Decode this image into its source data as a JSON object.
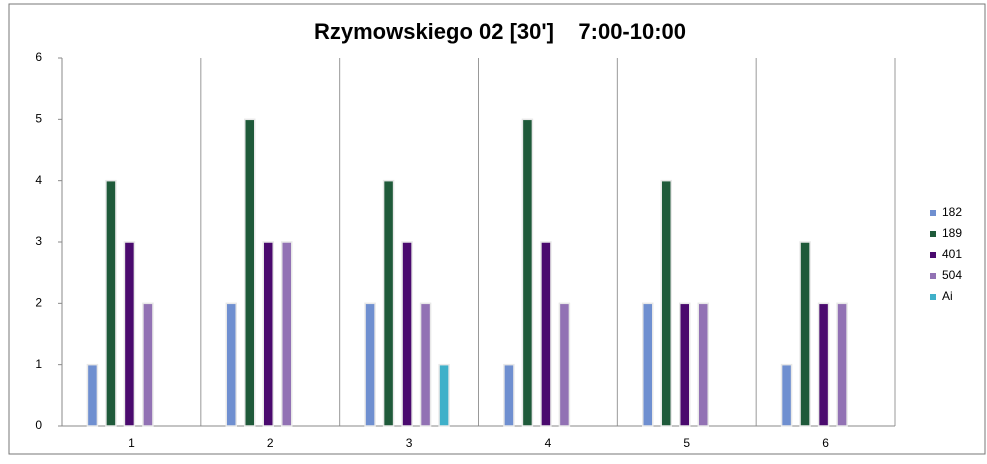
{
  "chart_data": {
    "type": "bar",
    "title": "Rzymowskiego 02 [30']    7:00-10:00",
    "categories": [
      "1",
      "2",
      "3",
      "4",
      "5",
      "6"
    ],
    "series": [
      {
        "name": "182",
        "color": "#6f8fd0",
        "values": [
          1,
          2,
          2,
          1,
          2,
          1
        ]
      },
      {
        "name": "189",
        "color": "#1f5a3a",
        "values": [
          4,
          5,
          4,
          5,
          4,
          3
        ]
      },
      {
        "name": "401",
        "color": "#4a0a6e",
        "values": [
          3,
          3,
          3,
          3,
          2,
          2
        ]
      },
      {
        "name": "504",
        "color": "#9272b4",
        "values": [
          2,
          3,
          2,
          2,
          2,
          2
        ]
      },
      {
        "name": "Ai",
        "color": "#3fb0c9",
        "values": [
          0,
          0,
          1,
          0,
          0,
          0
        ]
      }
    ],
    "ylim": [
      0,
      6
    ],
    "yticks": [
      0,
      1,
      2,
      3,
      4,
      5,
      6
    ],
    "grid": true,
    "legend": "right"
  }
}
